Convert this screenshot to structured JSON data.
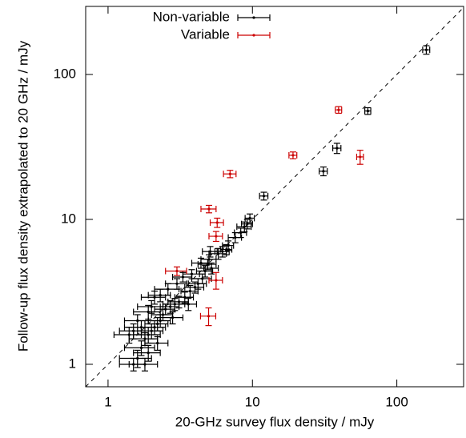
{
  "chart_data": {
    "type": "scatter",
    "x_label": "20-GHz survey flux density / mJy",
    "y_label": "Follow-up flux density extrapolated to 20 GHz / mJy",
    "log_x": true,
    "log_y": true,
    "diagonal": true,
    "legend": "upper left",
    "xlim": [
      0.7,
      290
    ],
    "ylim": [
      0.7,
      295
    ],
    "xticks": [
      1,
      10,
      100
    ],
    "yticks": [
      1,
      10,
      100
    ],
    "series": [
      {
        "name": "Non-variable",
        "color": "#000000",
        "x": [
          160,
          63,
          38.5,
          31,
          12,
          9.6,
          9.2,
          8.8,
          8.3,
          7.6,
          6.8,
          6.6,
          6.2,
          5.8,
          5.1,
          5.0,
          4.9,
          5.2,
          4.7,
          4.5,
          4.2,
          4.0,
          3.7,
          3.4,
          3.1,
          2.9,
          2.7,
          2.5,
          2.4,
          2.3,
          2.2,
          2.1,
          2.0,
          1.9,
          1.8,
          1.7,
          1.6,
          1.5,
          1.8,
          1.7,
          1.5,
          1.4,
          2.3,
          2.0,
          2.6,
          1.9,
          3.0,
          3.3,
          3.8,
          4.4,
          2.8,
          2.2,
          1.9,
          3.6,
          1.6,
          2.1
        ],
        "values": [
          148,
          56,
          31,
          21.5,
          14.5,
          10.2,
          9.3,
          8.9,
          8.1,
          7.5,
          6.6,
          6.2,
          6.0,
          5.8,
          6.0,
          5.3,
          4.9,
          4.6,
          4.4,
          3.9,
          3.6,
          3.4,
          3.2,
          2.9,
          2.7,
          2.6,
          2.5,
          2.4,
          2.2,
          2.0,
          1.9,
          1.8,
          1.7,
          1.6,
          1.5,
          1.3,
          1.1,
          1.0,
          1.0,
          1.8,
          1.7,
          1.6,
          3.0,
          2.5,
          3.3,
          2.3,
          3.6,
          4.0,
          4.2,
          5.0,
          2.1,
          1.4,
          1.2,
          2.6,
          2.0,
          2.9
        ],
        "x_err": [
          9,
          3,
          2.5,
          2,
          0.8,
          0.7,
          0.8,
          1.0,
          0.8,
          0.8,
          0.6,
          0.6,
          0.7,
          0.8,
          0.6,
          0.6,
          0.7,
          0.6,
          0.6,
          0.7,
          0.6,
          0.6,
          0.5,
          0.5,
          0.5,
          0.5,
          0.4,
          0.4,
          0.4,
          0.4,
          0.4,
          0.4,
          0.4,
          0.4,
          0.4,
          0.4,
          0.4,
          0.3,
          0.4,
          0.4,
          0.3,
          0.3,
          0.4,
          0.4,
          0.5,
          0.4,
          0.5,
          0.5,
          0.5,
          0.6,
          0.5,
          0.4,
          0.4,
          0.5,
          0.3,
          0.4
        ],
        "y_err": [
          10,
          3,
          2.5,
          1.5,
          0.9,
          0.7,
          0.7,
          0.7,
          0.6,
          0.6,
          0.5,
          0.5,
          0.5,
          0.5,
          0.5,
          0.4,
          0.4,
          0.4,
          0.4,
          0.3,
          0.3,
          0.3,
          0.3,
          0.25,
          0.25,
          0.25,
          0.25,
          0.2,
          0.2,
          0.2,
          0.2,
          0.2,
          0.2,
          0.2,
          0.15,
          0.15,
          0.15,
          0.1,
          0.1,
          0.2,
          0.2,
          0.2,
          0.3,
          0.25,
          0.3,
          0.25,
          0.3,
          0.3,
          0.3,
          0.4,
          0.2,
          0.15,
          0.15,
          0.25,
          0.2,
          0.3
        ]
      },
      {
        "name": "Variable",
        "color": "#cc0000",
        "x": [
          39.5,
          55.7,
          19.1,
          7.0,
          5.0,
          5.7,
          5.6,
          3.0,
          5.6,
          4.97
        ],
        "values": [
          57,
          27,
          27.7,
          20.6,
          11.8,
          9.5,
          7.65,
          4.4,
          3.8,
          2.15
        ],
        "x_err": [
          2,
          3,
          1.2,
          0.7,
          0.6,
          0.6,
          0.6,
          0.5,
          0.6,
          0.6
        ],
        "y_err": [
          3,
          3,
          1.5,
          1.2,
          0.7,
          0.7,
          0.6,
          0.3,
          0.5,
          0.3
        ]
      }
    ]
  }
}
